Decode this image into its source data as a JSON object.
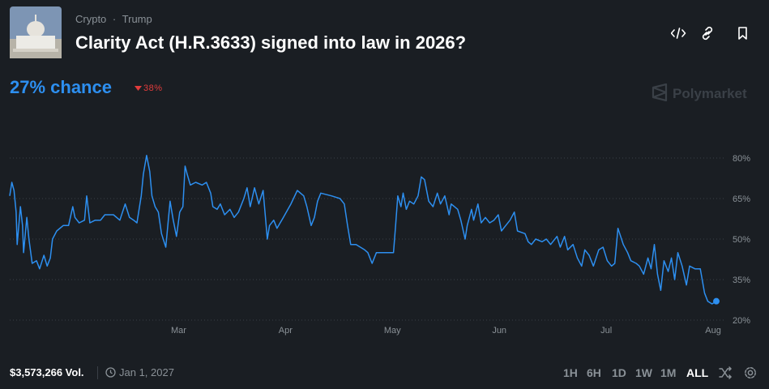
{
  "header": {
    "category": "Crypto",
    "separator": "·",
    "tag": "Trump",
    "title": "Clarity Act (H.R.3633) signed into law in 2026?",
    "chance": "27% chance",
    "change": "38%",
    "brand": "Polymarket"
  },
  "chart_data": {
    "type": "line",
    "color": "#2d8ff0",
    "grid": true,
    "x": [
      1.42,
      1.44,
      1.46,
      1.48,
      1.49,
      1.52,
      1.54,
      1.55,
      1.58,
      1.6,
      1.63,
      1.67,
      1.7,
      1.74,
      1.77,
      1.8,
      1.82,
      1.86,
      1.92,
      1.97,
      2.01,
      2.03,
      2.07,
      2.12,
      2.14,
      2.17,
      2.22,
      2.27,
      2.31,
      2.39,
      2.45,
      2.5,
      2.54,
      2.58,
      2.61,
      2.65,
      2.67,
      2.7,
      2.73,
      2.75,
      2.78,
      2.81,
      2.84,
      2.88,
      2.92,
      2.95,
      2.98,
      3.01,
      3.04,
      3.06,
      3.08,
      3.11,
      3.16,
      3.22,
      3.26,
      3.3,
      3.32,
      3.36,
      3.39,
      3.43,
      3.48,
      3.52,
      3.56,
      3.61,
      3.64,
      3.67,
      3.71,
      3.75,
      3.79,
      3.83,
      3.85,
      3.89,
      3.92,
      3.98,
      4.05,
      4.11,
      4.17,
      4.2,
      4.24,
      4.27,
      4.3,
      4.33,
      4.43,
      4.51,
      4.55,
      4.58,
      4.61,
      4.66,
      4.74,
      4.77,
      4.81,
      4.85,
      4.89,
      4.95,
      5.01,
      5.03,
      5.05,
      5.08,
      5.1,
      5.13,
      5.16,
      5.2,
      5.24,
      5.27,
      5.3,
      5.34,
      5.38,
      5.42,
      5.45,
      5.49,
      5.53,
      5.55,
      5.61,
      5.64,
      5.68,
      5.7,
      5.74,
      5.76,
      5.8,
      5.83,
      5.87,
      5.91,
      5.95,
      5.99,
      6.02,
      6.06,
      6.1,
      6.14,
      6.17,
      6.24,
      6.27,
      6.3,
      6.34,
      6.4,
      6.44,
      6.48,
      6.54,
      6.57,
      6.61,
      6.64,
      6.69,
      6.73,
      6.77,
      6.8,
      6.84,
      6.88,
      6.93,
      6.97,
      7.01,
      7.05,
      7.08,
      7.11,
      7.16,
      7.2,
      7.23,
      7.28,
      7.31,
      7.35,
      7.39,
      7.42,
      7.45,
      7.48,
      7.51,
      7.54,
      7.58,
      7.61,
      7.64,
      7.67,
      7.71,
      7.75,
      7.78,
      7.83,
      7.88,
      7.92,
      7.95,
      7.99,
      8.03
    ],
    "values": [
      66,
      71,
      68,
      60,
      48,
      62,
      55,
      45,
      58,
      50,
      41,
      42,
      39,
      44,
      40,
      43,
      50,
      53,
      55,
      55,
      62,
      58,
      56,
      57,
      66,
      56,
      57,
      57,
      59,
      59,
      57,
      63,
      58,
      57,
      56,
      66,
      74,
      81,
      75,
      66,
      62,
      60,
      52,
      47,
      64,
      57,
      51,
      60,
      62,
      77,
      74,
      70,
      71,
      70,
      71,
      67,
      62,
      61,
      63,
      59,
      61,
      58,
      60,
      65,
      69,
      62,
      69,
      63,
      68,
      50,
      55,
      57,
      54,
      58,
      63,
      68,
      66,
      62,
      55,
      58,
      64,
      67,
      66,
      65,
      63,
      55,
      48,
      48,
      46,
      45,
      41,
      45,
      45,
      45,
      45,
      55,
      66,
      62,
      67,
      61,
      64,
      63,
      66,
      73,
      72,
      64,
      62,
      67,
      63,
      66,
      59,
      63,
      61,
      57,
      50,
      55,
      61,
      57,
      63,
      56,
      58,
      56,
      57,
      59,
      53,
      55,
      57,
      60,
      53,
      52,
      49,
      48,
      50,
      49,
      50,
      48,
      51,
      47,
      51,
      46,
      48,
      43,
      40,
      46,
      44,
      40,
      46,
      47,
      42,
      40,
      41,
      54,
      48,
      45,
      42,
      41,
      40,
      37,
      43,
      39,
      48,
      37,
      31,
      42,
      38,
      43,
      35,
      45,
      40,
      33,
      40,
      39,
      39,
      30,
      27,
      26,
      27
    ],
    "xlim": [
      1.42,
      8.03
    ],
    "xticks": [
      {
        "value": 3,
        "label": "Mar"
      },
      {
        "value": 4,
        "label": "Apr"
      },
      {
        "value": 5,
        "label": "May"
      },
      {
        "value": 6,
        "label": "Jun"
      },
      {
        "value": 7,
        "label": "Jul"
      },
      {
        "value": 8,
        "label": "Aug"
      }
    ],
    "ylim": [
      20,
      80
    ],
    "yticks": [
      {
        "value": 80,
        "label": "80%"
      },
      {
        "value": 65,
        "label": "65%"
      },
      {
        "value": 50,
        "label": "50%"
      },
      {
        "value": 35,
        "label": "35%"
      },
      {
        "value": 20,
        "label": "20%"
      }
    ]
  },
  "footer": {
    "volume": "$3,573,266 Vol.",
    "end_date": "Jan 1, 2027",
    "ranges": [
      "1H",
      "6H",
      "1D",
      "1W",
      "1M",
      "ALL"
    ],
    "active_range": 5
  }
}
